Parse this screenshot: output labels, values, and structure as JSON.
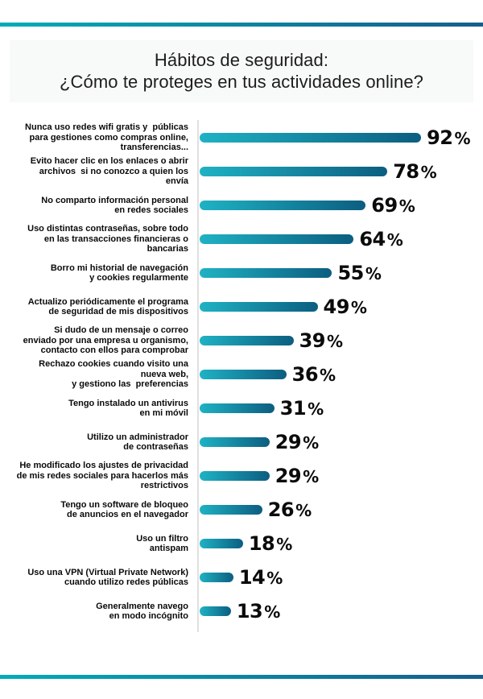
{
  "page": {
    "title_line1": "Hábitos de seguridad:",
    "title_line2": "¿Cómo te proteges en tus actividades online?"
  },
  "colors": {
    "bar_gradient_start": "#1fb2c4",
    "bar_gradient_end": "#0c5e80",
    "rule_gradient_start": "#00acb8",
    "rule_gradient_end": "#155e8c",
    "axis_line": "#e0e0e0",
    "title_background": "#f8f9f9",
    "value_text": "#0b0b0b"
  },
  "chart_data": {
    "type": "bar",
    "orientation": "horizontal",
    "title": "Hábitos de seguridad: ¿Cómo te proteges en tus actividades online?",
    "xlabel": "",
    "ylabel": "",
    "unit": "%",
    "xlim": [
      0,
      100
    ],
    "grid": false,
    "legend": false,
    "categories": [
      "Nunca uso redes wifi gratis y públicas para gestiones como compras online, transferencias...",
      "Evito hacer clic en los enlaces o abrir archivos si no conozco a quien los envía",
      "No comparto información personal en redes sociales",
      "Uso distintas contraseñas, sobre todo en las transacciones financieras o bancarias",
      "Borro mi historial de navegación y cookies regularmente",
      "Actualizo periódicamente el programa de seguridad de mis dispositivos",
      "Si dudo de un mensaje o correo enviado por una empresa u organismo, contacto con ellos para comprobar",
      "Rechazo cookies cuando visito una nueva web, y gestiono las preferencias",
      "Tengo instalado un antivirus en mi móvil",
      "Utilizo un administrador de contraseñas",
      "He modificado los ajustes de privacidad de mis redes sociales para hacerlos más restrictivos",
      "Tengo un software de bloqueo de anuncios en el navegador",
      "Uso un filtro antispam",
      "Uso una VPN (Virtual Private Network) cuando utilizo redes públicas",
      "Generalmente navego en modo incógnito"
    ],
    "values": [
      92,
      78,
      69,
      64,
      55,
      49,
      39,
      36,
      31,
      29,
      29,
      26,
      18,
      14,
      13
    ],
    "rows": [
      {
        "label_lines": [
          "Nunca uso redes wifi gratis y  públicas",
          "para gestiones como compras online,",
          "transferencias..."
        ],
        "value": 92
      },
      {
        "label_lines": [
          "Evito hacer clic en los enlaces o abrir",
          "archivos  si no conozco a quien los",
          "envía"
        ],
        "value": 78
      },
      {
        "label_lines": [
          "No comparto información personal",
          "en redes sociales"
        ],
        "value": 69
      },
      {
        "label_lines": [
          "Uso distintas contraseñas, sobre todo",
          "en las transacciones financieras o",
          "bancarias"
        ],
        "value": 64
      },
      {
        "label_lines": [
          "Borro mi historial de navegación",
          "y cookies regularmente"
        ],
        "value": 55
      },
      {
        "label_lines": [
          "Actualizo periódicamente el programa",
          "de seguridad de mis dispositivos"
        ],
        "value": 49
      },
      {
        "label_lines": [
          "Si dudo de un mensaje o correo",
          "enviado por una empresa u organismo,",
          "contacto con ellos para comprobar"
        ],
        "value": 39
      },
      {
        "label_lines": [
          "Rechazo cookies cuando visito una",
          "nueva web,",
          "y gestiono las  preferencias"
        ],
        "value": 36
      },
      {
        "label_lines": [
          "Tengo instalado un antivirus",
          "en mi móvil"
        ],
        "value": 31
      },
      {
        "label_lines": [
          "Utilizo un administrador",
          "de contraseñas"
        ],
        "value": 29
      },
      {
        "label_lines": [
          "He modificado los ajustes de privacidad",
          "de mis redes sociales para hacerlos más",
          "restrictivos"
        ],
        "value": 29
      },
      {
        "label_lines": [
          "Tengo un software de bloqueo",
          "de anuncios en el navegador"
        ],
        "value": 26
      },
      {
        "label_lines": [
          "Uso un filtro",
          "antispam"
        ],
        "value": 18
      },
      {
        "label_lines": [
          "Uso una VPN (Virtual Private Network)",
          "cuando utilizo redes públicas"
        ],
        "value": 14
      },
      {
        "label_lines": [
          "Generalmente navego",
          "en modo incógnito"
        ],
        "value": 13
      }
    ]
  }
}
